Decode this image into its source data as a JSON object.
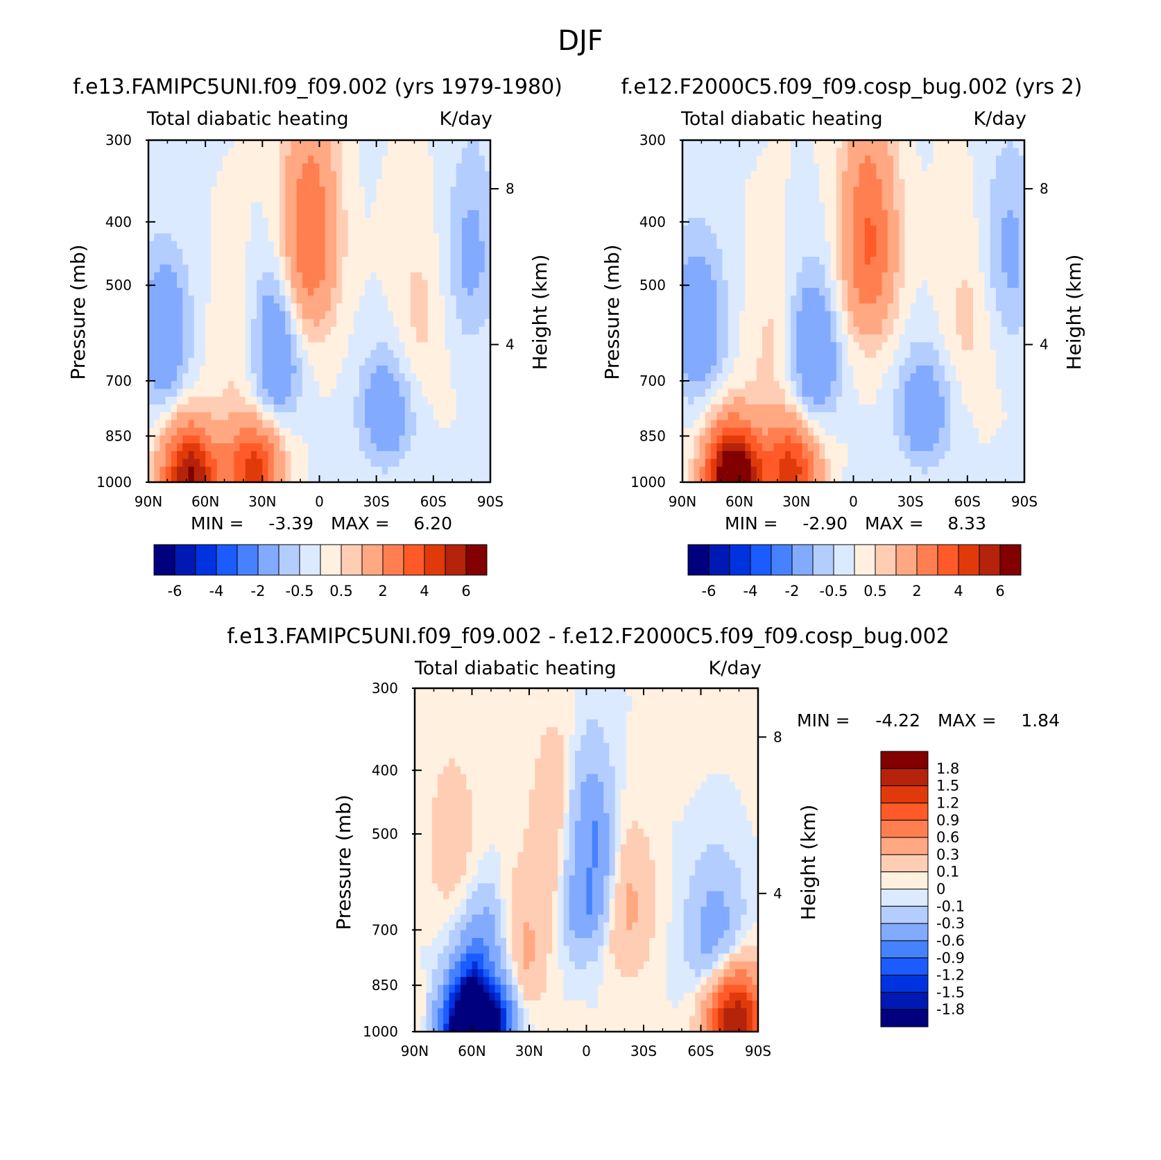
{
  "figure": {
    "title": "DJF",
    "stats_label_min": "MIN =",
    "stats_label_max": "MAX ="
  },
  "chart_data": [
    {
      "type": "heatmap",
      "title": "f.e13.FAMIPC5UNI.f09_f09.002 (yrs 1979-1980)",
      "subtitle_left": "Total diabatic heating",
      "subtitle_right": "K/day",
      "ylabel": "Pressure (mb)",
      "ylabel_right": "Height (km)",
      "x_ticks": [
        "90N",
        "60N",
        "30N",
        "0",
        "30S",
        "60S",
        "90S"
      ],
      "x_values": [
        90,
        60,
        30,
        0,
        -30,
        -60,
        -90
      ],
      "y_ticks": [
        "300",
        "400",
        "500",
        "700",
        "850",
        "1000"
      ],
      "y_values": [
        300,
        400,
        500,
        700,
        850,
        1000
      ],
      "y_right_ticks": [
        "8",
        "4"
      ],
      "ylim": [
        1000,
        300
      ],
      "min": "-3.39",
      "max": "6.20",
      "colorbar_labels": [
        "-6",
        "-4",
        "-2",
        "-0.5",
        "0.5",
        "2",
        "4",
        "6"
      ],
      "colorbar_levels": [
        -6,
        -5,
        -4,
        -3,
        -2,
        -1,
        -0.5,
        0,
        0.5,
        1,
        2,
        3,
        4,
        5,
        6
      ],
      "features": [
        {
          "lat": 68,
          "p": 980,
          "value": 6.2
        },
        {
          "lat": 35,
          "p": 960,
          "value": 4.5
        },
        {
          "lat": 5,
          "p": 420,
          "value": 3.0
        },
        {
          "lat": 40,
          "p": 620,
          "value": 0.8
        },
        {
          "lat": -52,
          "p": 560,
          "value": 0.7
        },
        {
          "lat": 25,
          "p": 640,
          "value": -2.5
        },
        {
          "lat": 82,
          "p": 600,
          "value": -2.0
        },
        {
          "lat": -35,
          "p": 780,
          "value": -1.8
        },
        {
          "lat": -80,
          "p": 450,
          "value": -1.2
        }
      ]
    },
    {
      "type": "heatmap",
      "title": "f.e12.F2000C5.f09_f09.cosp_bug.002 (yrs 2)",
      "subtitle_left": "Total diabatic heating",
      "subtitle_right": "K/day",
      "ylabel": "Pressure (mb)",
      "ylabel_right": "Height (km)",
      "x_ticks": [
        "90N",
        "60N",
        "30N",
        "0",
        "30S",
        "60S",
        "90S"
      ],
      "x_values": [
        90,
        60,
        30,
        0,
        -30,
        -60,
        -90
      ],
      "y_ticks": [
        "300",
        "400",
        "500",
        "700",
        "850",
        "1000"
      ],
      "y_values": [
        300,
        400,
        500,
        700,
        850,
        1000
      ],
      "y_right_ticks": [
        "8",
        "4"
      ],
      "ylim": [
        1000,
        300
      ],
      "min": "-2.90",
      "max": "8.33",
      "colorbar_labels": [
        "-6",
        "-4",
        "-2",
        "-0.5",
        "0.5",
        "2",
        "4",
        "6"
      ],
      "colorbar_levels": [
        -6,
        -5,
        -4,
        -3,
        -2,
        -1,
        -0.5,
        0,
        0.5,
        1,
        2,
        3,
        4,
        5,
        6
      ],
      "features": [
        {
          "lat": 63,
          "p": 980,
          "value": 8.3
        },
        {
          "lat": 33,
          "p": 960,
          "value": 4.5
        },
        {
          "lat": -8,
          "p": 430,
          "value": 3.2
        },
        {
          "lat": 40,
          "p": 620,
          "value": 0.8
        },
        {
          "lat": -60,
          "p": 560,
          "value": 0.7
        },
        {
          "lat": 22,
          "p": 640,
          "value": -2.4
        },
        {
          "lat": 82,
          "p": 580,
          "value": -2.0
        },
        {
          "lat": -37,
          "p": 780,
          "value": -1.8
        },
        {
          "lat": -82,
          "p": 450,
          "value": -1.2
        }
      ]
    },
    {
      "type": "heatmap",
      "title": "f.e13.FAMIPC5UNI.f09_f09.002 - f.e12.F2000C5.f09_f09.cosp_bug.002",
      "subtitle_left": "Total diabatic heating",
      "subtitle_right": "K/day",
      "ylabel": "Pressure (mb)",
      "ylabel_right": "Height (km)",
      "x_ticks": [
        "90N",
        "60N",
        "30N",
        "0",
        "30S",
        "60S",
        "90S"
      ],
      "x_values": [
        90,
        60,
        30,
        0,
        -30,
        -60,
        -90
      ],
      "y_ticks": [
        "300",
        "400",
        "500",
        "700",
        "850",
        "1000"
      ],
      "y_values": [
        300,
        400,
        500,
        700,
        850,
        1000
      ],
      "y_right_ticks": [
        "8",
        "4"
      ],
      "ylim": [
        1000,
        300
      ],
      "min": "-4.22",
      "max": "1.84",
      "colorbar_labels": [
        "1.8",
        "1.5",
        "1.2",
        "0.9",
        "0.6",
        "0.3",
        "0.1",
        "0",
        "-0.1",
        "-0.3",
        "-0.6",
        "-0.9",
        "-1.2",
        "-1.5",
        "-1.8"
      ],
      "colorbar_levels": [
        -1.8,
        -1.5,
        -1.2,
        -0.9,
        -0.6,
        -0.3,
        -0.1,
        0,
        0.1,
        0.3,
        0.6,
        0.9,
        1.2,
        1.5,
        1.8
      ],
      "features": [
        {
          "lat": 58,
          "p": 995,
          "value": -4.22
        },
        {
          "lat": 1,
          "p": 560,
          "value": -1.2
        },
        {
          "lat": 50,
          "p": 780,
          "value": -0.8
        },
        {
          "lat": 12,
          "p": 520,
          "value": 0.6
        },
        {
          "lat": 38,
          "p": 760,
          "value": 0.6
        },
        {
          "lat": -20,
          "p": 640,
          "value": 0.4
        },
        {
          "lat": -68,
          "p": 720,
          "value": -0.5
        },
        {
          "lat": -78,
          "p": 960,
          "value": 1.84
        },
        {
          "lat": 70,
          "p": 520,
          "value": 0.2
        }
      ]
    }
  ],
  "colorbar_colors": {
    "main": [
      "#00007f",
      "#0019b2",
      "#0033e0",
      "#1a5cff",
      "#4682ff",
      "#82aaff",
      "#b4cdff",
      "#dceaff",
      "#fff0e0",
      "#ffcdb4",
      "#ffa882",
      "#ff7f50",
      "#ff5a28",
      "#e03a0a",
      "#b4230a",
      "#820000"
    ],
    "diff": [
      "#00007f",
      "#0019b2",
      "#0033e0",
      "#1a5cff",
      "#4682ff",
      "#82aaff",
      "#b4cdff",
      "#dceaff",
      "#fff0e0",
      "#ffcdb4",
      "#ffa882",
      "#ff7f50",
      "#ff5a28",
      "#e03a0a",
      "#b4230a",
      "#820000"
    ]
  }
}
